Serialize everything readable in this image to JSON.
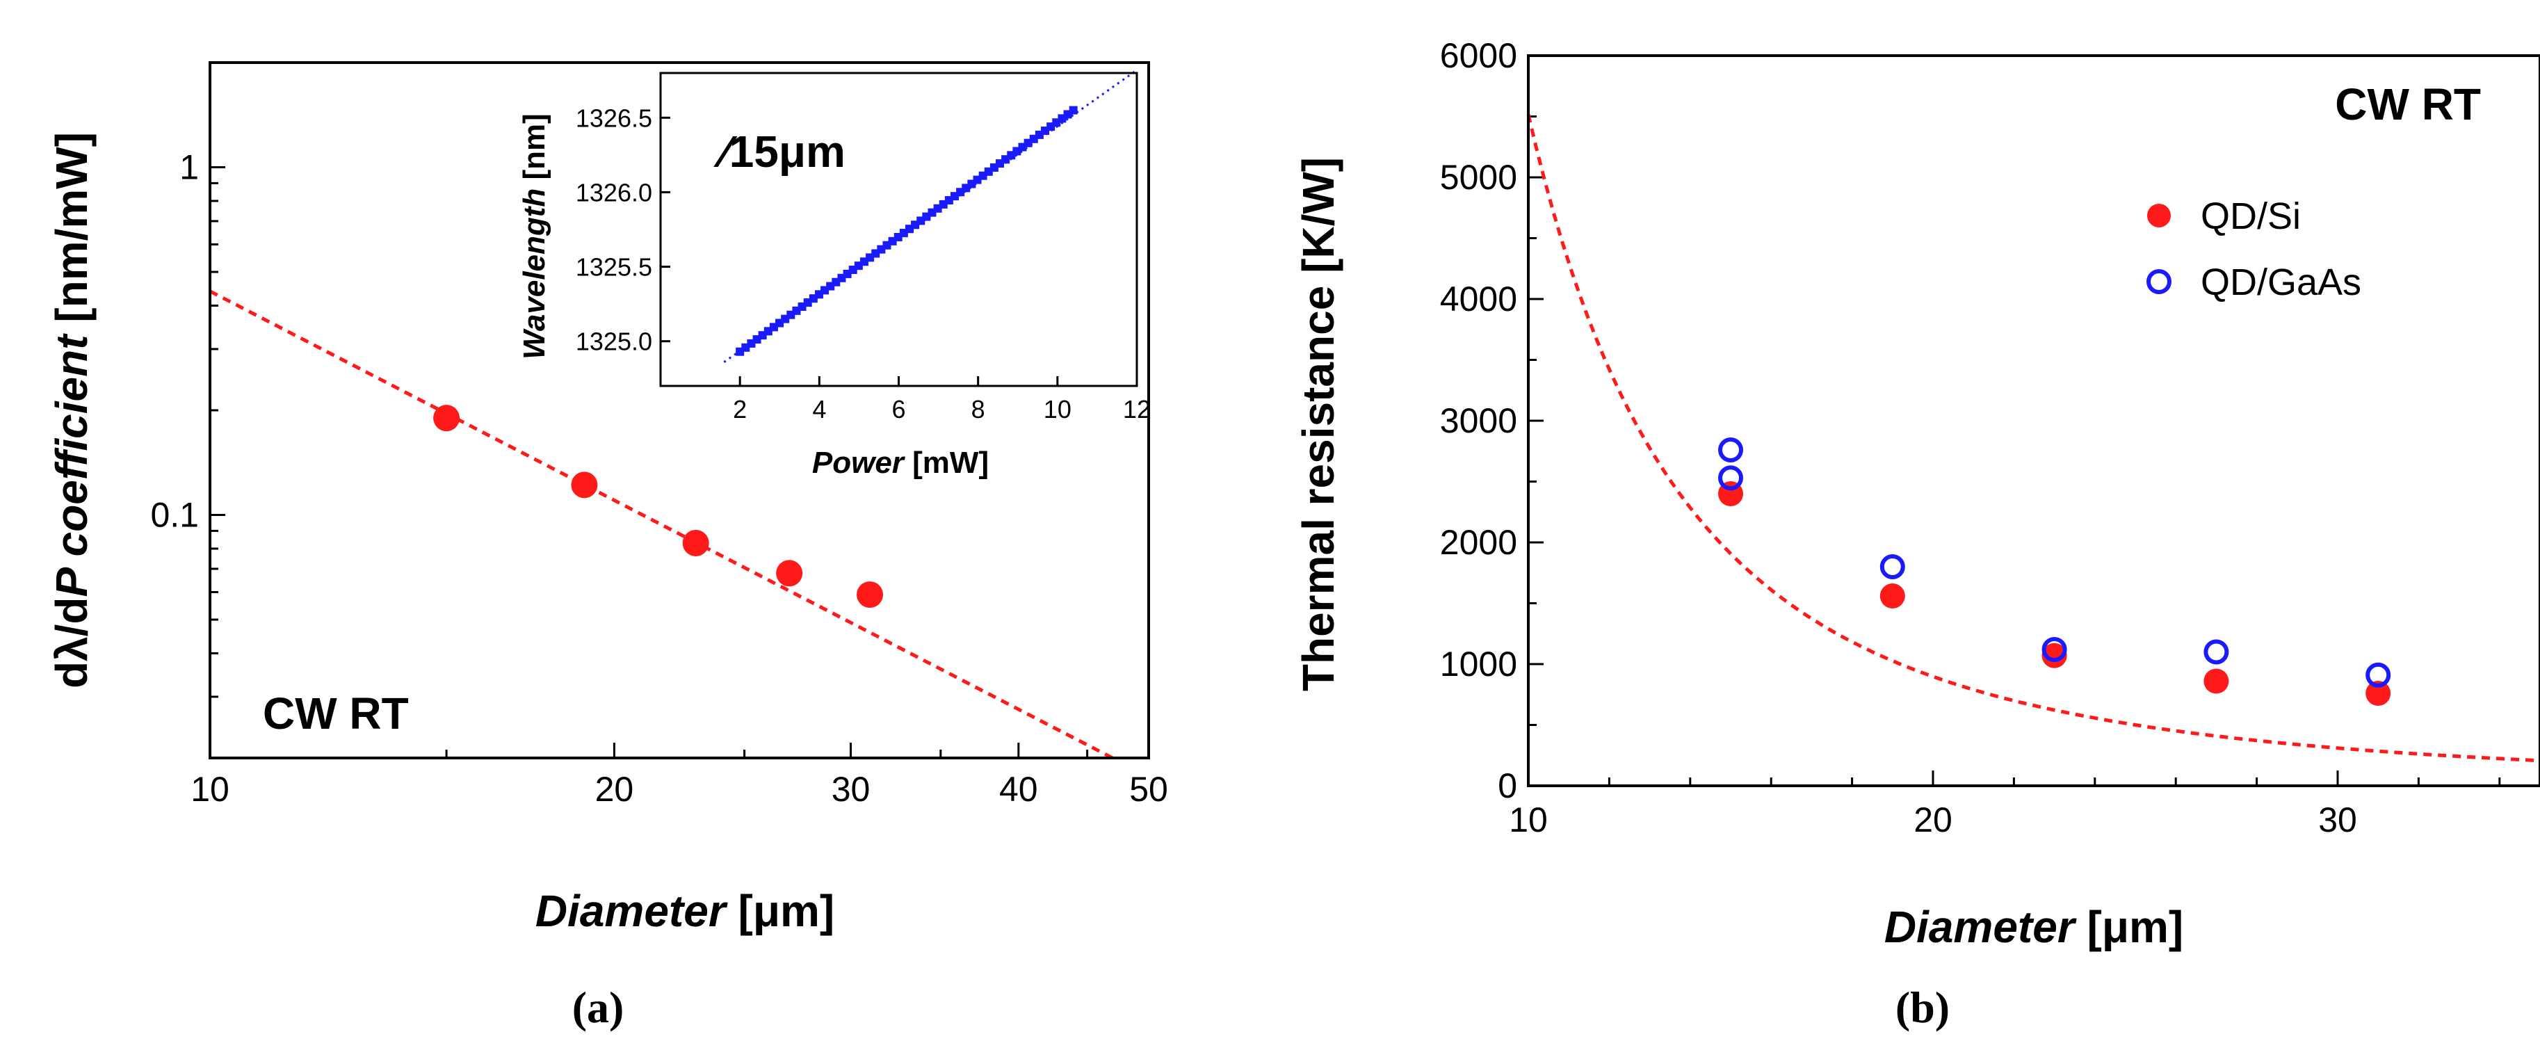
{
  "chart_data": [
    {
      "type": "scatter",
      "panel_label": "(a)",
      "x_scale": "log",
      "y_scale": "log",
      "xlim": [
        10,
        50
      ],
      "ylim": [
        0.02,
        2
      ],
      "xticks": [
        10,
        20,
        30,
        40,
        50
      ],
      "xtick_labels": [
        "10",
        "20",
        "30",
        "40",
        "50"
      ],
      "yticks": [
        0.1,
        1
      ],
      "ytick_labels": [
        "0.1",
        "1"
      ],
      "ylabel_parts": [
        "dλ/d",
        "P coefficient",
        "  [nm/mW]"
      ],
      "xlabel_parts": [
        "Diameter",
        " [μm]"
      ],
      "annotation": "CW RT",
      "series": [
        {
          "name": "dλ/dP coefficient",
          "color": "#ff1a1a",
          "x": [
            15,
            19,
            23,
            27,
            31
          ],
          "y": [
            0.19,
            0.122,
            0.083,
            0.068,
            0.059
          ]
        }
      ],
      "fit": {
        "style": "dashed",
        "color": "#ff1a1a",
        "x": [
          10,
          47
        ],
        "y": [
          0.44,
          0.02
        ]
      },
      "inset": {
        "type": "scatter",
        "xlim": [
          0,
          12
        ],
        "ylim": [
          1324.7,
          1326.8
        ],
        "xticks": [
          2,
          4,
          6,
          8,
          10,
          12
        ],
        "xtick_labels": [
          "2",
          "4",
          "6",
          "8",
          "10",
          "12"
        ],
        "yticks": [
          1325.0,
          1325.5,
          1326.0,
          1326.5
        ],
        "ytick_labels": [
          "1325.0",
          "1325.5",
          "1326.0",
          "1326.5"
        ],
        "xlabel_parts": [
          "Power",
          " [mW]"
        ],
        "ylabel_parts": [
          "Wavelength",
          " [nm]"
        ],
        "annotation": "∕15μm",
        "series": [
          {
            "name": "Wavelength vs Power",
            "color": "#1a1aff",
            "x_start": 2.0,
            "x_end": 10.4,
            "y_start": 1324.93,
            "y_end": 1326.55,
            "points": 60
          }
        ],
        "fit": {
          "style": "dotted",
          "color": "#1a1aff",
          "x": [
            1.6,
            12
          ],
          "y": [
            1324.86,
            1326.82
          ]
        }
      }
    },
    {
      "type": "scatter",
      "panel_label": "(b)",
      "x_scale": "linear",
      "y_scale": "linear",
      "xlim": [
        10,
        35
      ],
      "ylim": [
        0,
        6000
      ],
      "xticks": [
        10,
        20,
        30
      ],
      "xtick_labels": [
        "10",
        "20",
        "30"
      ],
      "yticks": [
        0,
        1000,
        2000,
        3000,
        4000,
        5000,
        6000
      ],
      "ytick_labels": [
        "0",
        "1000",
        "2000",
        "3000",
        "4000",
        "5000",
        "6000"
      ],
      "ylabel": "Thermal resistance  [K/W]",
      "xlabel_parts": [
        "Diameter",
        " [μm]"
      ],
      "annotation": "CW RT",
      "legend": [
        "QD/Si",
        "QD/GaAs"
      ],
      "series": [
        {
          "name": "QD/Si",
          "marker": "filled-circle",
          "color": "#ff1a1a",
          "x": [
            15,
            19,
            23,
            27,
            31
          ],
          "y": [
            2400,
            1560,
            1070,
            860,
            760
          ]
        },
        {
          "name": "QD/GaAs",
          "marker": "open-circle",
          "color": "#1a1aff",
          "x": [
            15,
            15,
            19,
            23,
            27,
            31
          ],
          "y": [
            2760,
            2530,
            1800,
            1120,
            1100,
            910
          ]
        }
      ],
      "fit": {
        "style": "dashed",
        "color": "#ff1a1a",
        "function": "a*x^-b",
        "a": 2300000,
        "b": 2.62,
        "xrange": [
          10,
          35
        ]
      }
    }
  ]
}
